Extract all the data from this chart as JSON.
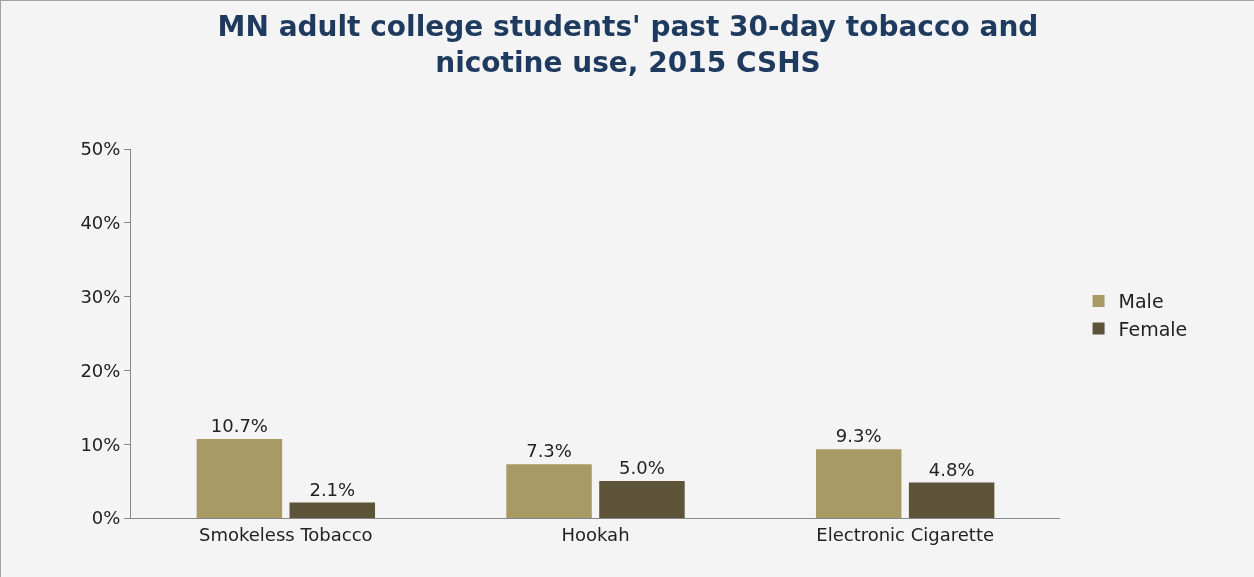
{
  "chart_data": {
    "type": "bar",
    "title": "MN adult college students' past 30-day tobacco and nicotine use, 2015 CSHS",
    "categories": [
      "Smokeless Tobacco",
      "Hookah",
      "Electronic Cigarette"
    ],
    "series": [
      {
        "name": "Male",
        "color": "#a89a64",
        "values": [
          10.7,
          7.3,
          9.3
        ],
        "value_labels": [
          "10.7%",
          "7.3%",
          "9.3%"
        ]
      },
      {
        "name": "Female",
        "color": "#5c5338",
        "values": [
          2.1,
          5.0,
          4.8
        ],
        "value_labels": [
          "2.1%",
          "5.0%",
          "4.8%"
        ]
      }
    ],
    "ylim": [
      0,
      50
    ],
    "yticks": [
      {
        "value": 0,
        "label": "0%"
      },
      {
        "value": 10,
        "label": "10%"
      },
      {
        "value": 20,
        "label": "20%"
      },
      {
        "value": 30,
        "label": "30%"
      },
      {
        "value": 40,
        "label": "40%"
      },
      {
        "value": 50,
        "label": "50%"
      }
    ],
    "grid": false,
    "legend": "right"
  }
}
